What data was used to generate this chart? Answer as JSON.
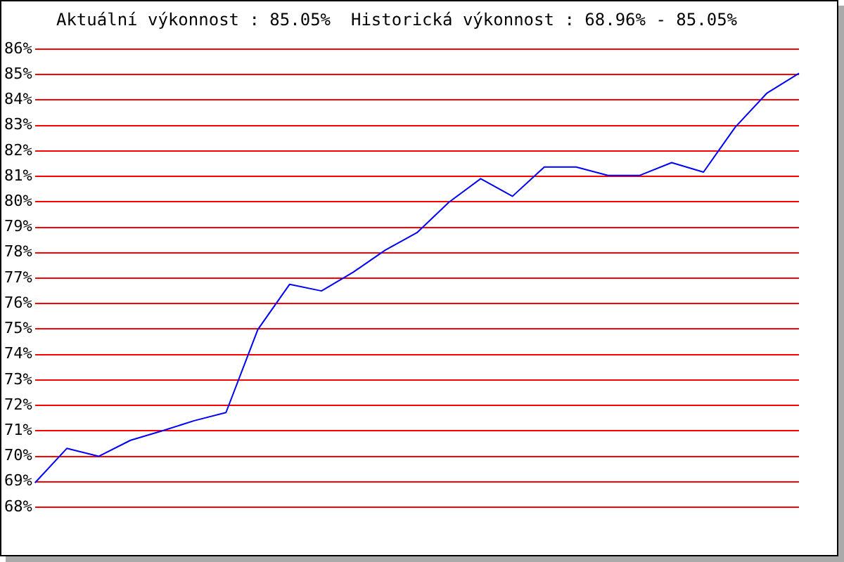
{
  "chart_data": {
    "type": "line",
    "title": "Aktuální výkonnost : 85.05%  Historická výkonnost : 68.96% - 85.05%",
    "categories": [
      null,
      null,
      null,
      null,
      null,
      null,
      null,
      null,
      null,
      null,
      null,
      null,
      null,
      null,
      null,
      null,
      null,
      null,
      null,
      null,
      null,
      null,
      null,
      null,
      null
    ],
    "series": [
      {
        "color": "#0000ff",
        "values": [
          68.96,
          70.31,
          70.0,
          70.63,
          71.0,
          71.4,
          71.72,
          74.98,
          76.76,
          76.5,
          77.24,
          78.1,
          78.79,
          79.98,
          80.91,
          80.22,
          81.37,
          81.37,
          81.04,
          81.04,
          81.54,
          81.17,
          82.94,
          84.28,
          85.05
        ]
      }
    ],
    "ylim": [
      68,
      86
    ],
    "yticks": [
      {
        "value": 68,
        "label": "68%"
      },
      {
        "value": 69,
        "label": "69%"
      },
      {
        "value": 70,
        "label": "70%"
      },
      {
        "value": 71,
        "label": "71%"
      },
      {
        "value": 72,
        "label": "72%"
      },
      {
        "value": 73,
        "label": "73%"
      },
      {
        "value": 74,
        "label": "74%"
      },
      {
        "value": 75,
        "label": "75%"
      },
      {
        "value": 76,
        "label": "76%"
      },
      {
        "value": 77,
        "label": "77%"
      },
      {
        "value": 78,
        "label": "78%"
      },
      {
        "value": 79,
        "label": "79%"
      },
      {
        "value": 80,
        "label": "80%"
      },
      {
        "value": 81,
        "label": "81%"
      },
      {
        "value": 82,
        "label": "82%"
      },
      {
        "value": 83,
        "label": "83%"
      },
      {
        "value": 84,
        "label": "84%"
      },
      {
        "value": 85,
        "label": "85%"
      },
      {
        "value": 86,
        "label": "86%"
      }
    ],
    "grid": "y",
    "tick_labels": "y",
    "marker": "none",
    "line_style": "solid",
    "legend": false
  }
}
